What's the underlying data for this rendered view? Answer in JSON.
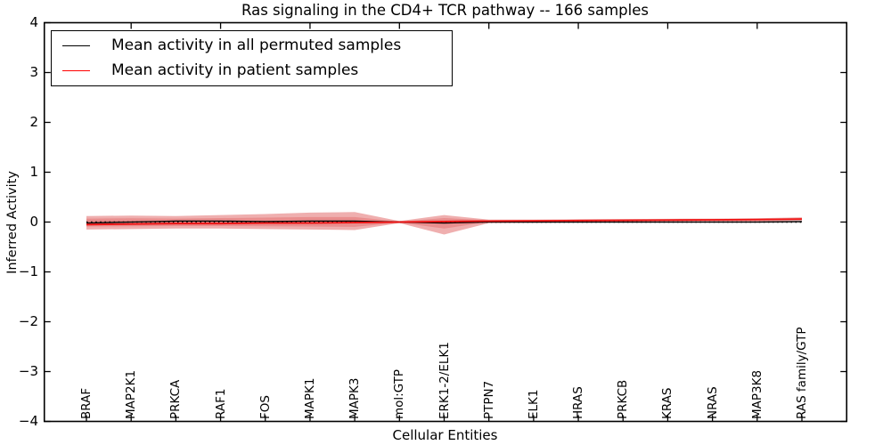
{
  "title": "Ras signaling in the CD4+ TCR pathway -- 166 samples",
  "legend": {
    "items": [
      {
        "label": "Mean activity in all permuted samples",
        "color": "#000000"
      },
      {
        "label": "Mean activity in patient samples",
        "color": "#ff0000"
      }
    ],
    "position": "upper left"
  },
  "chart_data": {
    "type": "line",
    "title": "Ras signaling in the CD4+ TCR pathway -- 166 samples",
    "xlabel": "Cellular Entities",
    "ylabel": "Inferred Activity",
    "ylim": [
      -4,
      4
    ],
    "ytick_labels": [
      "4",
      "3",
      "2",
      "1",
      "0",
      "−1",
      "−2",
      "−3",
      "−4"
    ],
    "ytick_values": [
      4,
      3,
      2,
      1,
      0,
      -1,
      -2,
      -3,
      -4
    ],
    "grid": false,
    "categories": [
      "BRAF",
      "MAP2K1",
      "PRKCA",
      "RAF1",
      "FOS",
      "MAPK1",
      "MAPK3",
      "mol:GTP",
      "ERK1-2/ELK1",
      "PTPN7",
      "ELK1",
      "HRAS",
      "PRKCB",
      "KRAS",
      "NRAS",
      "MAP3K8",
      "RAS family/GTP"
    ],
    "series": [
      {
        "name": "Mean activity in all permuted samples",
        "color": "#000000",
        "width": 1.3,
        "values": [
          -0.02,
          0.0,
          0.02,
          0.02,
          0.01,
          0.02,
          0.02,
          0.0,
          -0.02,
          0.0,
          0.0,
          0.0,
          0.0,
          0.0,
          0.0,
          0.0,
          0.01
        ]
      },
      {
        "name": "Mean activity in patient samples",
        "color": "#ee1111",
        "width": 1.8,
        "values": [
          -0.05,
          -0.04,
          -0.03,
          -0.03,
          -0.02,
          -0.02,
          -0.01,
          0.0,
          0.01,
          0.02,
          0.025,
          0.03,
          0.035,
          0.04,
          0.045,
          0.05,
          0.06
        ]
      }
    ],
    "zero_line": {
      "show": true,
      "style": "dotted",
      "color": "#000000",
      "value": 0
    },
    "bands": [
      {
        "name": "permuted-samples-spread",
        "fill": "rgba(0,0,0,0.13)",
        "upper": [
          0.022,
          0.022,
          0.022,
          0.022,
          0.022,
          0.022,
          0.022,
          0.022,
          0.022,
          0.022,
          0.022,
          0.022,
          0.022,
          0.022,
          0.022,
          0.022,
          0.022
        ],
        "lower": [
          -0.022,
          -0.022,
          -0.022,
          -0.022,
          -0.022,
          -0.022,
          -0.022,
          -0.022,
          -0.022,
          -0.022,
          -0.022,
          -0.022,
          -0.022,
          -0.022,
          -0.022,
          -0.022,
          -0.022
        ]
      },
      {
        "name": "patient-samples-spread-outer",
        "fill": "rgba(217,65,65,0.42)",
        "upper": [
          0.12,
          0.13,
          0.12,
          0.14,
          0.16,
          0.19,
          0.2,
          0.02,
          0.14,
          0.05,
          0.05,
          0.055,
          0.06,
          0.065,
          0.07,
          0.075,
          0.095
        ],
        "lower": [
          -0.15,
          -0.14,
          -0.13,
          -0.13,
          -0.14,
          -0.15,
          -0.16,
          -0.02,
          -0.25,
          -0.02,
          -0.015,
          -0.01,
          -0.005,
          0.0,
          0.005,
          0.01,
          0.025
        ]
      },
      {
        "name": "patient-samples-spread-inner",
        "fill": "rgba(217,65,65,0.30)",
        "upper": [
          0.07,
          0.075,
          0.07,
          0.08,
          0.09,
          0.1,
          0.1,
          0.01,
          0.08,
          0.035,
          0.04,
          0.045,
          0.05,
          0.055,
          0.06,
          0.065,
          0.08
        ],
        "lower": [
          -0.09,
          -0.085,
          -0.08,
          -0.08,
          -0.085,
          -0.09,
          -0.095,
          -0.01,
          -0.13,
          0.005,
          0.01,
          0.015,
          0.02,
          0.025,
          0.03,
          0.035,
          0.045
        ]
      }
    ],
    "axis_color": "#000000",
    "background": "#ffffff"
  }
}
